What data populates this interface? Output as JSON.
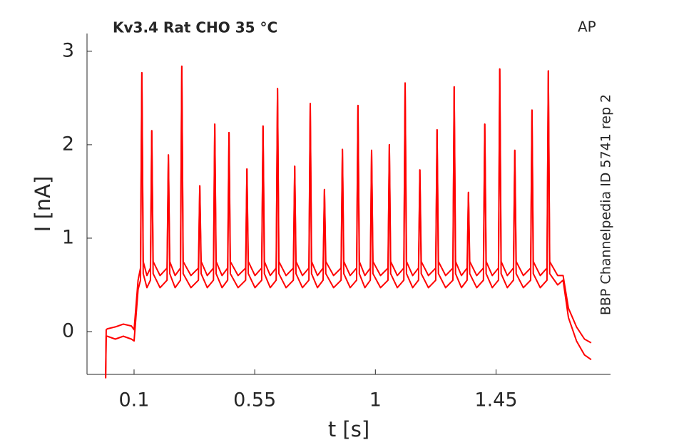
{
  "chart_data": {
    "type": "line",
    "title": "Kv3.4  Rat  CHO  35 °C",
    "annotation": "AP",
    "side_note": "BBP Channelpedia ID 5741 rep 2",
    "xlabel": "t [s]",
    "ylabel": "I [nA]",
    "xlim": [
      -0.0755,
      1.877
    ],
    "ylim": [
      -0.458,
      3.19
    ],
    "xticks": [
      0.1,
      0.55,
      1,
      1.45
    ],
    "yticks": [
      0,
      1,
      2,
      3
    ],
    "x": [
      -0.006,
      -0.004,
      0.0,
      0.03,
      0.06,
      0.09,
      0.1,
      0.115,
      0.124,
      0.129,
      0.134,
      0.148,
      0.161,
      0.166,
      0.171,
      0.197,
      0.223,
      0.228,
      0.233,
      0.253,
      0.273,
      0.278,
      0.283,
      0.312,
      0.34,
      0.345,
      0.35,
      0.373,
      0.396,
      0.401,
      0.406,
      0.428,
      0.449,
      0.454,
      0.459,
      0.488,
      0.516,
      0.521,
      0.526,
      0.551,
      0.576,
      0.581,
      0.586,
      0.608,
      0.63,
      0.635,
      0.64,
      0.667,
      0.694,
      0.699,
      0.704,
      0.728,
      0.752,
      0.757,
      0.762,
      0.784,
      0.805,
      0.81,
      0.815,
      0.844,
      0.872,
      0.877,
      0.882,
      0.906,
      0.93,
      0.935,
      0.94,
      0.961,
      0.981,
      0.986,
      0.991,
      1.019,
      1.047,
      1.052,
      1.057,
      1.082,
      1.106,
      1.111,
      1.116,
      1.139,
      1.161,
      1.166,
      1.171,
      1.198,
      1.225,
      1.23,
      1.235,
      1.262,
      1.289,
      1.294,
      1.299,
      1.321,
      1.342,
      1.347,
      1.352,
      1.378,
      1.403,
      1.408,
      1.413,
      1.436,
      1.459,
      1.464,
      1.469,
      1.492,
      1.515,
      1.52,
      1.525,
      1.552,
      1.579,
      1.584,
      1.589,
      1.615,
      1.64,
      1.645,
      1.65,
      1.68,
      1.7,
      1.72,
      1.75,
      1.78,
      1.805
    ],
    "series": [
      {
        "color": "#ff0000",
        "values": [
          -0.5,
          0.02,
          0.03,
          0.05,
          0.08,
          0.06,
          0.02,
          0.55,
          0.68,
          2.77,
          0.75,
          0.6,
          0.68,
          2.15,
          0.75,
          0.6,
          0.68,
          1.89,
          0.75,
          0.6,
          0.68,
          2.84,
          0.75,
          0.6,
          0.68,
          1.56,
          0.75,
          0.6,
          0.68,
          2.22,
          0.75,
          0.6,
          0.68,
          2.13,
          0.75,
          0.6,
          0.68,
          1.74,
          0.75,
          0.6,
          0.68,
          2.2,
          0.75,
          0.6,
          0.68,
          2.6,
          0.75,
          0.6,
          0.68,
          1.77,
          0.75,
          0.6,
          0.68,
          2.44,
          0.75,
          0.6,
          0.68,
          1.52,
          0.75,
          0.6,
          0.68,
          1.95,
          0.75,
          0.6,
          0.68,
          2.42,
          0.75,
          0.6,
          0.68,
          1.94,
          0.75,
          0.6,
          0.68,
          2.0,
          0.75,
          0.6,
          0.68,
          2.66,
          0.75,
          0.6,
          0.68,
          1.73,
          0.75,
          0.6,
          0.68,
          2.16,
          0.75,
          0.6,
          0.68,
          2.62,
          0.75,
          0.6,
          0.68,
          1.49,
          0.75,
          0.6,
          0.68,
          2.22,
          0.75,
          0.6,
          0.68,
          2.81,
          0.75,
          0.6,
          0.68,
          1.94,
          0.75,
          0.6,
          0.68,
          2.37,
          0.75,
          0.6,
          0.68,
          2.79,
          0.75,
          0.6,
          0.6,
          0.25,
          0.05,
          -0.08,
          -0.12
        ]
      },
      {
        "color": "#ff0000",
        "values": [
          -0.5,
          -0.05,
          -0.05,
          -0.08,
          -0.05,
          -0.08,
          -0.1,
          0.45,
          0.55,
          2.77,
          0.62,
          0.47,
          0.55,
          2.15,
          0.62,
          0.47,
          0.55,
          1.89,
          0.62,
          0.47,
          0.55,
          2.84,
          0.62,
          0.47,
          0.55,
          1.56,
          0.62,
          0.47,
          0.55,
          2.22,
          0.62,
          0.47,
          0.55,
          2.13,
          0.62,
          0.47,
          0.55,
          1.74,
          0.62,
          0.47,
          0.55,
          2.2,
          0.62,
          0.47,
          0.55,
          2.6,
          0.62,
          0.47,
          0.55,
          1.77,
          0.62,
          0.47,
          0.55,
          2.44,
          0.62,
          0.47,
          0.55,
          1.52,
          0.62,
          0.47,
          0.55,
          1.95,
          0.62,
          0.47,
          0.55,
          2.42,
          0.62,
          0.47,
          0.55,
          1.94,
          0.62,
          0.47,
          0.55,
          2.0,
          0.62,
          0.47,
          0.55,
          2.66,
          0.62,
          0.47,
          0.55,
          1.73,
          0.62,
          0.47,
          0.55,
          2.16,
          0.62,
          0.47,
          0.55,
          2.62,
          0.62,
          0.47,
          0.55,
          1.49,
          0.62,
          0.47,
          0.55,
          2.22,
          0.62,
          0.47,
          0.55,
          2.81,
          0.62,
          0.47,
          0.55,
          1.94,
          0.62,
          0.47,
          0.55,
          2.37,
          0.62,
          0.47,
          0.55,
          2.79,
          0.62,
          0.5,
          0.55,
          0.15,
          -0.1,
          -0.25,
          -0.3
        ]
      }
    ]
  }
}
